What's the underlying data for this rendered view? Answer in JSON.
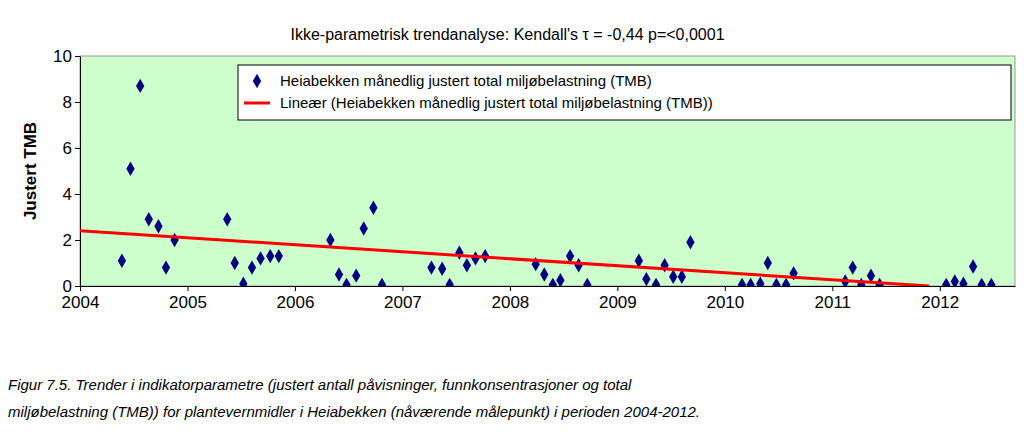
{
  "chart_data": {
    "type": "scatter",
    "title": "Ikke-parametrisk trendanalyse: Kendall's τ = -0,44 p=<0,0001",
    "y_label": "Justert TMB",
    "caption": [
      "Figur 7.5. Trender i indikatorparametre (justert antall påvisninger, funnkonsentrasjoner og total",
      "miljøbelastning (TMB)) for plantevernmidler i Heiabekken (nåværende målepunkt) i perioden 2004-2012."
    ],
    "xlim": [
      2004,
      2012.7
    ],
    "xticks": [
      2004,
      2005,
      2006,
      2007,
      2008,
      2009,
      2010,
      2011,
      2012
    ],
    "ylim": [
      0,
      10
    ],
    "yticks": [
      0,
      2,
      4,
      6,
      8,
      10
    ],
    "grid": false,
    "legend": "upper right",
    "series": [
      {
        "name": "Heiabekken månedlig justert total miljøbelastning (TMB)",
        "type": "scatter",
        "color": "#000080",
        "marker": "diamond",
        "x": [
          2004.39,
          2004.47,
          2004.56,
          2004.64,
          2004.73,
          2004.8,
          2004.88,
          2005.37,
          2005.44,
          2005.52,
          2005.6,
          2005.68,
          2005.77,
          2005.85,
          2006.33,
          2006.41,
          2006.48,
          2006.57,
          2006.64,
          2006.73,
          2006.81,
          2007.27,
          2007.37,
          2007.44,
          2007.53,
          2007.6,
          2007.68,
          2007.77,
          2008.24,
          2008.32,
          2008.4,
          2008.47,
          2008.56,
          2008.64,
          2008.72,
          2009.2,
          2009.27,
          2009.36,
          2009.44,
          2009.52,
          2009.6,
          2009.68,
          2010.16,
          2010.24,
          2010.33,
          2010.4,
          2010.48,
          2010.57,
          2010.64,
          2011.12,
          2011.19,
          2011.27,
          2011.36,
          2011.44,
          2012.06,
          2012.14,
          2012.22,
          2012.31,
          2012.39,
          2012.48
        ],
        "values": [
          1.1,
          5.1,
          8.7,
          2.9,
          2.6,
          0.8,
          2.0,
          2.9,
          1.0,
          0.1,
          0.8,
          1.2,
          1.3,
          1.3,
          2.0,
          0.5,
          0.05,
          0.45,
          2.5,
          3.4,
          0.05,
          0.8,
          0.75,
          0.05,
          1.45,
          0.9,
          1.2,
          1.3,
          0.95,
          0.5,
          0.05,
          0.25,
          1.3,
          0.9,
          0.05,
          1.1,
          0.3,
          0.05,
          0.9,
          0.4,
          0.4,
          1.9,
          0.05,
          0.05,
          0.1,
          1.0,
          0.05,
          0.05,
          0.55,
          0.2,
          0.8,
          0.05,
          0.45,
          0.05,
          0.05,
          0.2,
          0.1,
          0.85,
          0.05,
          0.05
        ]
      },
      {
        "name": "Lineær (Heiabekken månedlig justert total miljøbelastning (TMB))",
        "type": "line",
        "color": "#ff0000",
        "line_style": "solid",
        "x": [
          2004,
          2011.9
        ],
        "values": [
          2.4,
          0
        ]
      }
    ]
  }
}
